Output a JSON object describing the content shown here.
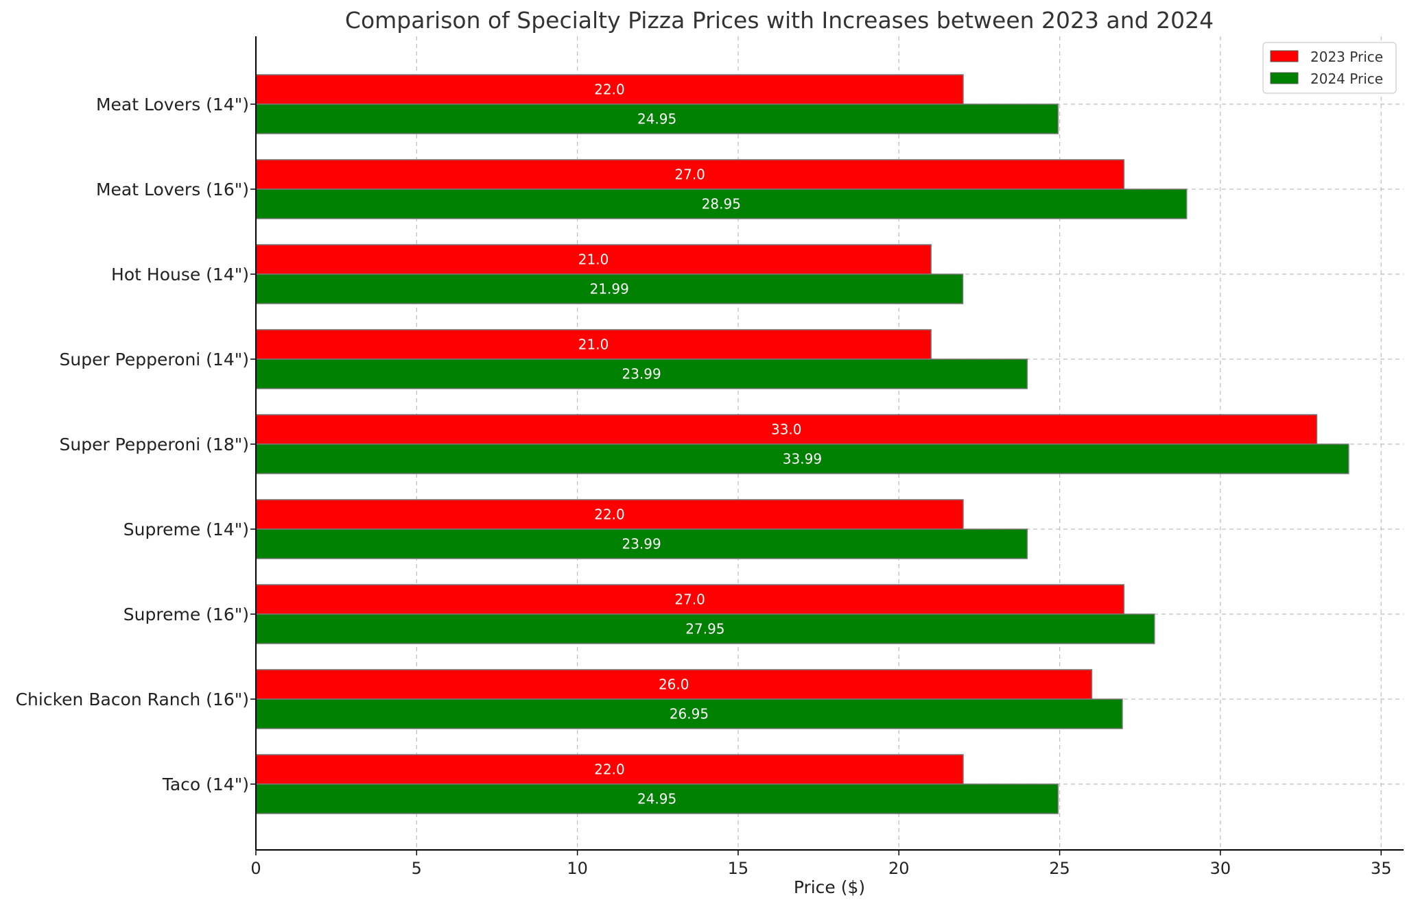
{
  "chart_data": {
    "type": "bar",
    "orientation": "horizontal",
    "title": "Comparison of Specialty Pizza Prices with Increases between 2023 and 2024",
    "xlabel": "Price ($)",
    "ylabel": "",
    "xlim": [
      0,
      35.7
    ],
    "xticks": [
      0,
      5,
      10,
      15,
      20,
      25,
      30,
      35
    ],
    "grid": true,
    "legend_position": "top-right",
    "categories": [
      "Meat Lovers (14\")",
      "Meat Lovers (16\")",
      "Hot House (14\")",
      "Super Pepperoni (14\")",
      "Super Pepperoni (18\")",
      "Supreme (14\")",
      "Supreme (16\")",
      "Chicken Bacon Ranch (16\")",
      "Taco (14\")"
    ],
    "series": [
      {
        "name": "2023 Price",
        "color": "#ff0000",
        "values": [
          22.0,
          27.0,
          21.0,
          21.0,
          33.0,
          22.0,
          27.0,
          26.0,
          22.0
        ],
        "labels": [
          "22.0",
          "27.0",
          "21.0",
          "21.0",
          "33.0",
          "22.0",
          "27.0",
          "26.0",
          "22.0"
        ]
      },
      {
        "name": "2024 Price",
        "color": "#008000",
        "values": [
          24.95,
          28.95,
          21.99,
          23.99,
          33.99,
          23.99,
          27.95,
          26.95,
          24.95
        ],
        "labels": [
          "24.95",
          "28.95",
          "21.99",
          "23.99",
          "33.99",
          "23.99",
          "27.95",
          "26.95",
          "24.95"
        ]
      }
    ]
  }
}
